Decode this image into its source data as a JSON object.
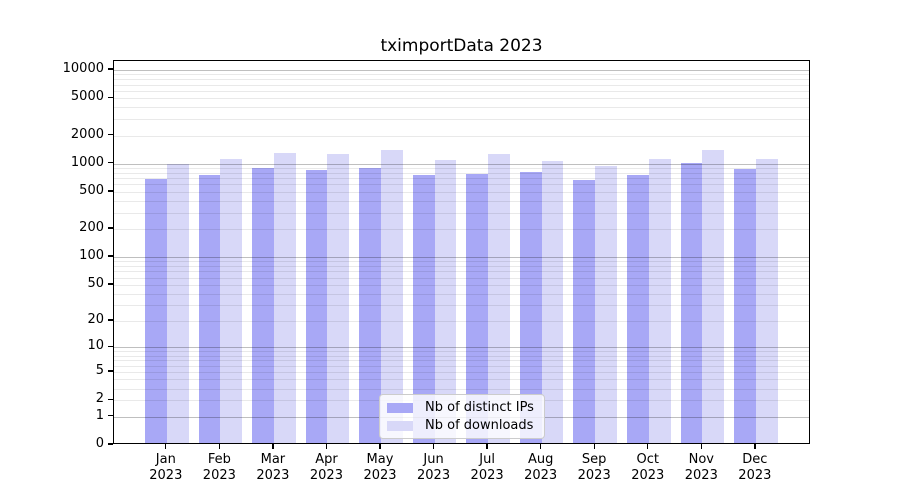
{
  "title": "tximportData 2023",
  "chart_data": {
    "type": "bar",
    "title": "tximportData 2023",
    "categories": [
      "Jan 2023",
      "Feb 2023",
      "Mar 2023",
      "Apr 2023",
      "May 2023",
      "Jun 2023",
      "Jul 2023",
      "Aug 2023",
      "Sep 2023",
      "Oct 2023",
      "Nov 2023",
      "Dec 2023"
    ],
    "x_tick_months": [
      "Jan",
      "Feb",
      "Mar",
      "Apr",
      "May",
      "Jun",
      "Jul",
      "Aug",
      "Sep",
      "Oct",
      "Nov",
      "Dec"
    ],
    "x_tick_year": "2023",
    "series": [
      {
        "name": "Nb of distinct IPs",
        "color": "#a8a8f6",
        "values": [
          660,
          730,
          850,
          820,
          860,
          720,
          740,
          780,
          640,
          725,
          970,
          840
        ]
      },
      {
        "name": "Nb of downloads",
        "color": "#d8d8f8",
        "values": [
          950,
          1070,
          1240,
          1200,
          1340,
          1040,
          1220,
          1020,
          900,
          1080,
          1350,
          1080
        ]
      }
    ],
    "y_scale": "log1p",
    "ylim": [
      0,
      10000
    ],
    "y_ticks": [
      0,
      1,
      2,
      5,
      10,
      20,
      50,
      100,
      200,
      500,
      1000,
      2000,
      5000,
      10000
    ],
    "y_major_gridlines": [
      1,
      10,
      100,
      1000,
      10000
    ],
    "grid": true,
    "legend_position": "bottom-center"
  },
  "colors": {
    "background": "#ffffff",
    "axis": "#000000",
    "major_grid": "#bfbfbf",
    "minor_grid": "#e9e9e9",
    "bar_distinct_ips": "#a8a8f6",
    "bar_downloads": "#d8d8f8",
    "legend_border": "#cccccc"
  }
}
